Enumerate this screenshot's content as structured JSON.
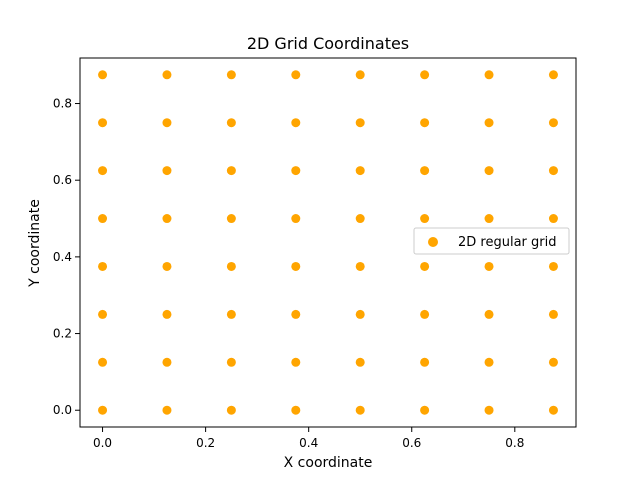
{
  "chart_data": {
    "type": "scatter",
    "title": "2D Grid Coordinates",
    "xlabel": "X coordinate",
    "ylabel": "Y coordinate",
    "xlim": [
      -0.04375,
      0.91875
    ],
    "ylim": [
      -0.04375,
      0.91875
    ],
    "x_ticks": [
      0.0,
      0.2,
      0.4,
      0.6,
      0.8
    ],
    "y_ticks": [
      0.0,
      0.2,
      0.4,
      0.6,
      0.8
    ],
    "x_tick_labels": [
      "0.0",
      "0.2",
      "0.4",
      "0.6",
      "0.8"
    ],
    "y_tick_labels": [
      "0.0",
      "0.2",
      "0.4",
      "0.6",
      "0.8"
    ],
    "grid": false,
    "legend_position": "center-right",
    "series": [
      {
        "name": "2D regular grid",
        "color": "#ffa500",
        "points": [
          [
            0.0,
            0.0
          ],
          [
            0.125,
            0.0
          ],
          [
            0.25,
            0.0
          ],
          [
            0.375,
            0.0
          ],
          [
            0.5,
            0.0
          ],
          [
            0.625,
            0.0
          ],
          [
            0.75,
            0.0
          ],
          [
            0.875,
            0.0
          ],
          [
            0.0,
            0.125
          ],
          [
            0.125,
            0.125
          ],
          [
            0.25,
            0.125
          ],
          [
            0.375,
            0.125
          ],
          [
            0.5,
            0.125
          ],
          [
            0.625,
            0.125
          ],
          [
            0.75,
            0.125
          ],
          [
            0.875,
            0.125
          ],
          [
            0.0,
            0.25
          ],
          [
            0.125,
            0.25
          ],
          [
            0.25,
            0.25
          ],
          [
            0.375,
            0.25
          ],
          [
            0.5,
            0.25
          ],
          [
            0.625,
            0.25
          ],
          [
            0.75,
            0.25
          ],
          [
            0.875,
            0.25
          ],
          [
            0.0,
            0.375
          ],
          [
            0.125,
            0.375
          ],
          [
            0.25,
            0.375
          ],
          [
            0.375,
            0.375
          ],
          [
            0.5,
            0.375
          ],
          [
            0.625,
            0.375
          ],
          [
            0.75,
            0.375
          ],
          [
            0.875,
            0.375
          ],
          [
            0.0,
            0.5
          ],
          [
            0.125,
            0.5
          ],
          [
            0.25,
            0.5
          ],
          [
            0.375,
            0.5
          ],
          [
            0.5,
            0.5
          ],
          [
            0.625,
            0.5
          ],
          [
            0.75,
            0.5
          ],
          [
            0.875,
            0.5
          ],
          [
            0.0,
            0.625
          ],
          [
            0.125,
            0.625
          ],
          [
            0.25,
            0.625
          ],
          [
            0.375,
            0.625
          ],
          [
            0.5,
            0.625
          ],
          [
            0.625,
            0.625
          ],
          [
            0.75,
            0.625
          ],
          [
            0.875,
            0.625
          ],
          [
            0.0,
            0.75
          ],
          [
            0.125,
            0.75
          ],
          [
            0.25,
            0.75
          ],
          [
            0.375,
            0.75
          ],
          [
            0.5,
            0.75
          ],
          [
            0.625,
            0.75
          ],
          [
            0.75,
            0.75
          ],
          [
            0.875,
            0.75
          ],
          [
            0.0,
            0.875
          ],
          [
            0.125,
            0.875
          ],
          [
            0.25,
            0.875
          ],
          [
            0.375,
            0.875
          ],
          [
            0.5,
            0.875
          ],
          [
            0.625,
            0.875
          ],
          [
            0.75,
            0.875
          ],
          [
            0.875,
            0.875
          ]
        ]
      }
    ]
  }
}
